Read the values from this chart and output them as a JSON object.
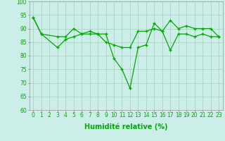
{
  "title": "",
  "xlabel": "Humidité relative (%)",
  "ylabel": "",
  "xlim": [
    -0.5,
    23.5
  ],
  "ylim": [
    60,
    100
  ],
  "xticks": [
    0,
    1,
    2,
    3,
    4,
    5,
    6,
    7,
    8,
    9,
    10,
    11,
    12,
    13,
    14,
    15,
    16,
    17,
    18,
    19,
    20,
    21,
    22,
    23
  ],
  "yticks": [
    60,
    65,
    70,
    75,
    80,
    85,
    90,
    95,
    100
  ],
  "line1_x": [
    0,
    1,
    3,
    4,
    5,
    6,
    7,
    8,
    9,
    10,
    11,
    12,
    13,
    14,
    15,
    16,
    17,
    18,
    19,
    20,
    21,
    22,
    23
  ],
  "line1_y": [
    94,
    88,
    87,
    87,
    90,
    88,
    88,
    88,
    88,
    79,
    75,
    68,
    83,
    84,
    92,
    89,
    93,
    90,
    91,
    90,
    90,
    90,
    87
  ],
  "line2_x": [
    0,
    1,
    3,
    4,
    5,
    6,
    7,
    8,
    9,
    10,
    11,
    12,
    13,
    14,
    15,
    16,
    17,
    18,
    19,
    20,
    21,
    22,
    23
  ],
  "line2_y": [
    94,
    88,
    83,
    86,
    87,
    88,
    89,
    88,
    85,
    84,
    83,
    83,
    89,
    89,
    90,
    89,
    82,
    88,
    88,
    87,
    88,
    87,
    87
  ],
  "line_color": "#00aa00",
  "bg_color": "#cceee8",
  "grid_color": "#aaccbb",
  "marker": "+",
  "linewidth": 0.9,
  "markersize": 3.5,
  "xlabel_fontsize": 7,
  "tick_fontsize": 5.5
}
